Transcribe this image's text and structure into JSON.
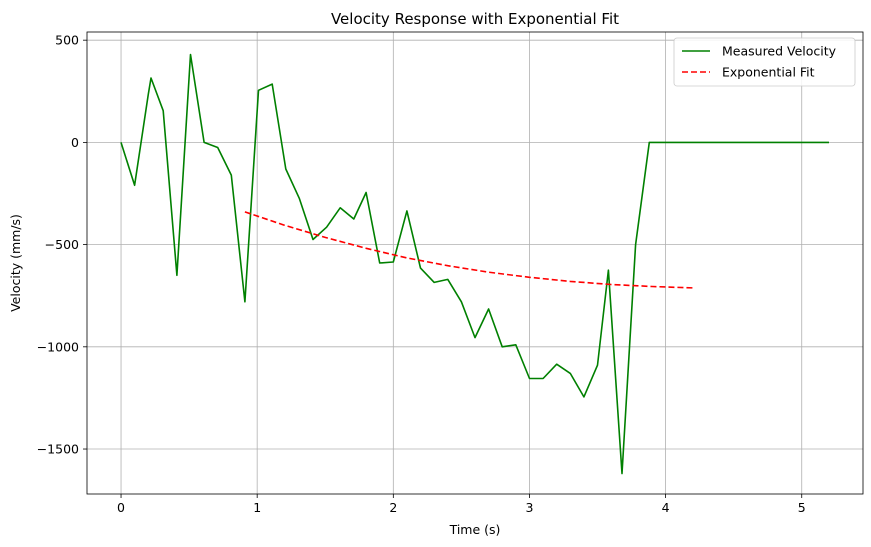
{
  "chart_data": {
    "type": "line",
    "title": "Velocity Response with Exponential Fit",
    "xlabel": "Time (s)",
    "ylabel": "Velocity (mm/s)",
    "xlim": [
      -0.25,
      5.45
    ],
    "ylim": [
      -1720,
      540
    ],
    "xticks": [
      0,
      1,
      2,
      3,
      4,
      5
    ],
    "xtick_labels": [
      "0",
      "1",
      "2",
      "3",
      "4",
      "5"
    ],
    "yticks": [
      500,
      0,
      -500,
      -1000,
      -1500
    ],
    "ytick_labels": [
      "500",
      "0",
      "−500",
      "−1000",
      "−1500"
    ],
    "grid": true,
    "legend_position": "top-right",
    "series": [
      {
        "name": "Measured Velocity",
        "color": "#008000",
        "style": "solid",
        "x": [
          0.0,
          0.1,
          0.2,
          0.22,
          0.31,
          0.41,
          0.51,
          0.61,
          0.71,
          0.81,
          0.91,
          1.01,
          1.11,
          1.21,
          1.31,
          1.41,
          1.51,
          1.61,
          1.71,
          1.8,
          1.9,
          2.0,
          2.1,
          2.2,
          2.3,
          2.4,
          2.5,
          2.6,
          2.7,
          2.8,
          2.9,
          3.0,
          3.1,
          3.2,
          3.3,
          3.4,
          3.5,
          3.58,
          3.68,
          3.78,
          3.88,
          4.0,
          5.2
        ],
        "y": [
          0,
          -210,
          235,
          315,
          155,
          -650,
          430,
          0,
          -25,
          -160,
          -780,
          255,
          285,
          -130,
          -275,
          -475,
          -415,
          -320,
          -375,
          -245,
          -590,
          -585,
          -335,
          -615,
          -685,
          -670,
          -780,
          -955,
          -815,
          -1000,
          -990,
          -1155,
          -1155,
          -1085,
          -1130,
          -1245,
          -1090,
          -625,
          -1620,
          -500,
          0,
          0,
          0
        ]
      },
      {
        "name": "Exponential Fit",
        "color": "#ff0000",
        "style": "dashed",
        "x": [
          0.91,
          1.2,
          1.5,
          1.8,
          2.1,
          2.4,
          2.7,
          3.0,
          3.3,
          3.6,
          3.9,
          4.2
        ],
        "y": [
          -340,
          -405,
          -465,
          -518,
          -565,
          -603,
          -635,
          -660,
          -680,
          -695,
          -705,
          -712
        ]
      }
    ]
  }
}
